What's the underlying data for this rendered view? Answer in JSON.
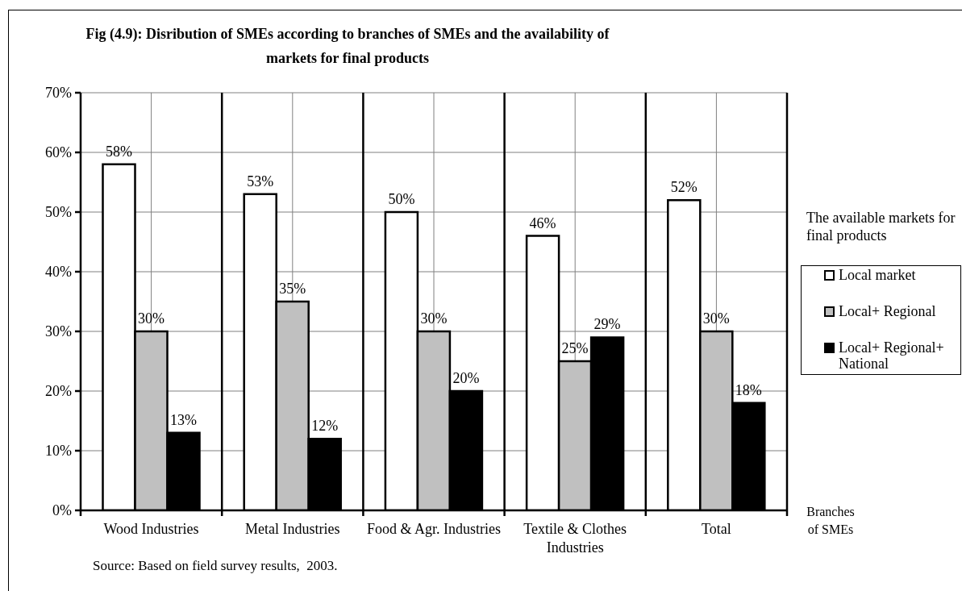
{
  "chart_data": {
    "type": "bar",
    "title": "Fig (4.9): Disribution of SMEs according to branches of SMEs and the availability of markets for final products",
    "xlabel": "Branches of SMEs",
    "legend_title": "The available markets for final products",
    "annotations": [
      "Source: Based on field survey results,  2003."
    ],
    "categories": [
      "Wood Industries",
      "Metal Industries",
      "Food & Agr. Industries",
      "Textile & Clothes Industries",
      "Total"
    ],
    "series": [
      {
        "name": "Local market",
        "color": "#ffffff",
        "values": [
          58,
          53,
          50,
          46,
          52
        ],
        "value_labels": [
          "58%",
          "53%",
          "50%",
          "46%",
          "52%"
        ]
      },
      {
        "name": "Local+ Regional",
        "color": "#c0c0c0",
        "values": [
          30,
          35,
          30,
          25,
          30
        ],
        "value_labels": [
          "30%",
          "35%",
          "30%",
          "25%",
          "30%"
        ]
      },
      {
        "name": "Local+ Regional+ National",
        "color": "#000000",
        "values": [
          13,
          12,
          20,
          29,
          18
        ],
        "value_labels": [
          "13%",
          "12%",
          "20%",
          "29%",
          "18%"
        ]
      }
    ],
    "ylim": [
      0,
      70
    ],
    "yticks": [
      {
        "value": 0,
        "label": "0%"
      },
      {
        "value": 10,
        "label": "10%"
      },
      {
        "value": 20,
        "label": "20%"
      },
      {
        "value": 30,
        "label": "30%"
      },
      {
        "value": 40,
        "label": "40%"
      },
      {
        "value": 50,
        "label": "50%"
      },
      {
        "value": 60,
        "label": "60%"
      },
      {
        "value": 70,
        "label": "70%"
      }
    ],
    "grid": true,
    "legend": "right"
  }
}
